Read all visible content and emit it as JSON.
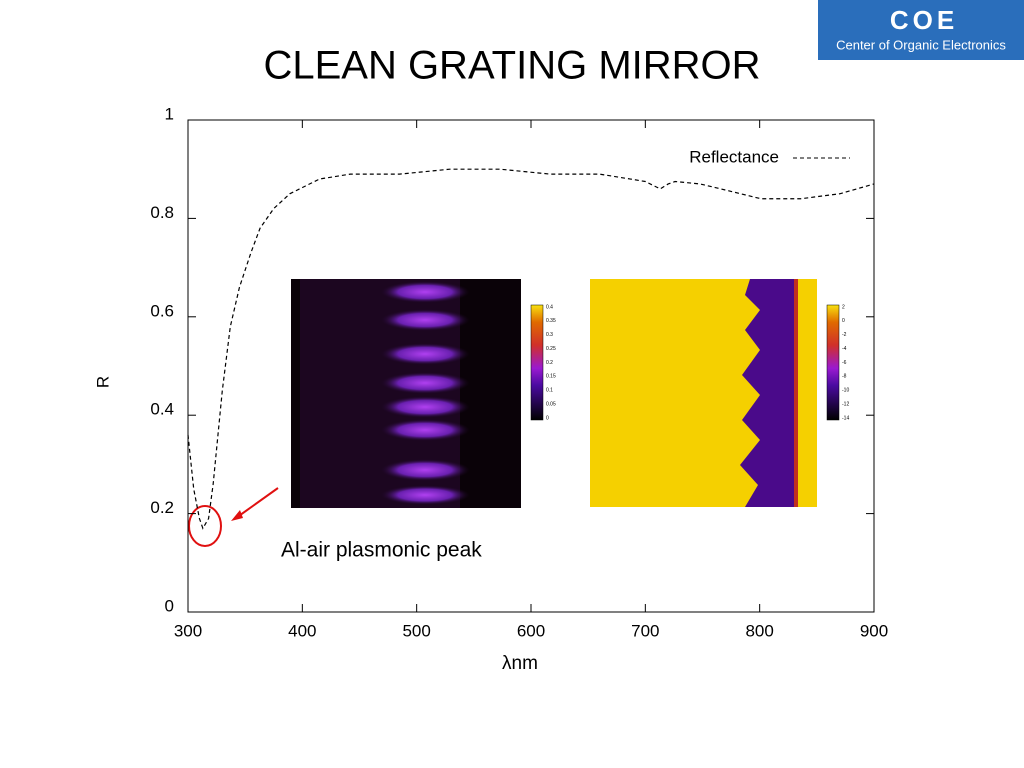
{
  "logo": {
    "abbr": "COE",
    "name": "Center of Organic Electronics"
  },
  "chart_data": {
    "type": "line",
    "title": "CLEAN GRATING MIRROR",
    "x_label": "λnm",
    "y_label": "R",
    "x": [
      300,
      305,
      310,
      313,
      318,
      322,
      330,
      337,
      345,
      355,
      363,
      375,
      389,
      415,
      442,
      485,
      529,
      573,
      617,
      660,
      687,
      700,
      713,
      720,
      726,
      748,
      766,
      801,
      836,
      870,
      900
    ],
    "series": [
      {
        "name": "Reflectance",
        "color": "#000000",
        "dashed": true,
        "values": [
          0.36,
          0.25,
          0.19,
          0.17,
          0.19,
          0.26,
          0.45,
          0.58,
          0.66,
          0.73,
          0.78,
          0.82,
          0.85,
          0.88,
          0.89,
          0.89,
          0.9,
          0.9,
          0.89,
          0.89,
          0.88,
          0.875,
          0.86,
          0.87,
          0.875,
          0.87,
          0.86,
          0.84,
          0.84,
          0.85,
          0.87
        ]
      }
    ],
    "xlim": [
      300,
      900
    ],
    "xticks": [
      300,
      400,
      500,
      600,
      700,
      800,
      900
    ],
    "ylim": [
      0,
      1
    ],
    "yticks": [
      0,
      0.2,
      0.4,
      0.6,
      0.8,
      1
    ],
    "legend": "upper right",
    "annotation": "Al-air plasmonic peak",
    "insets": [
      {
        "colorbar_ticks": [
          0.4,
          0.35,
          0.3,
          0.25,
          0.2,
          0.15,
          0.1,
          0.05,
          0
        ]
      },
      {
        "colorbar_ticks": [
          2,
          0,
          -2,
          -4,
          -6,
          -8,
          -10,
          -12,
          -14
        ]
      }
    ]
  }
}
